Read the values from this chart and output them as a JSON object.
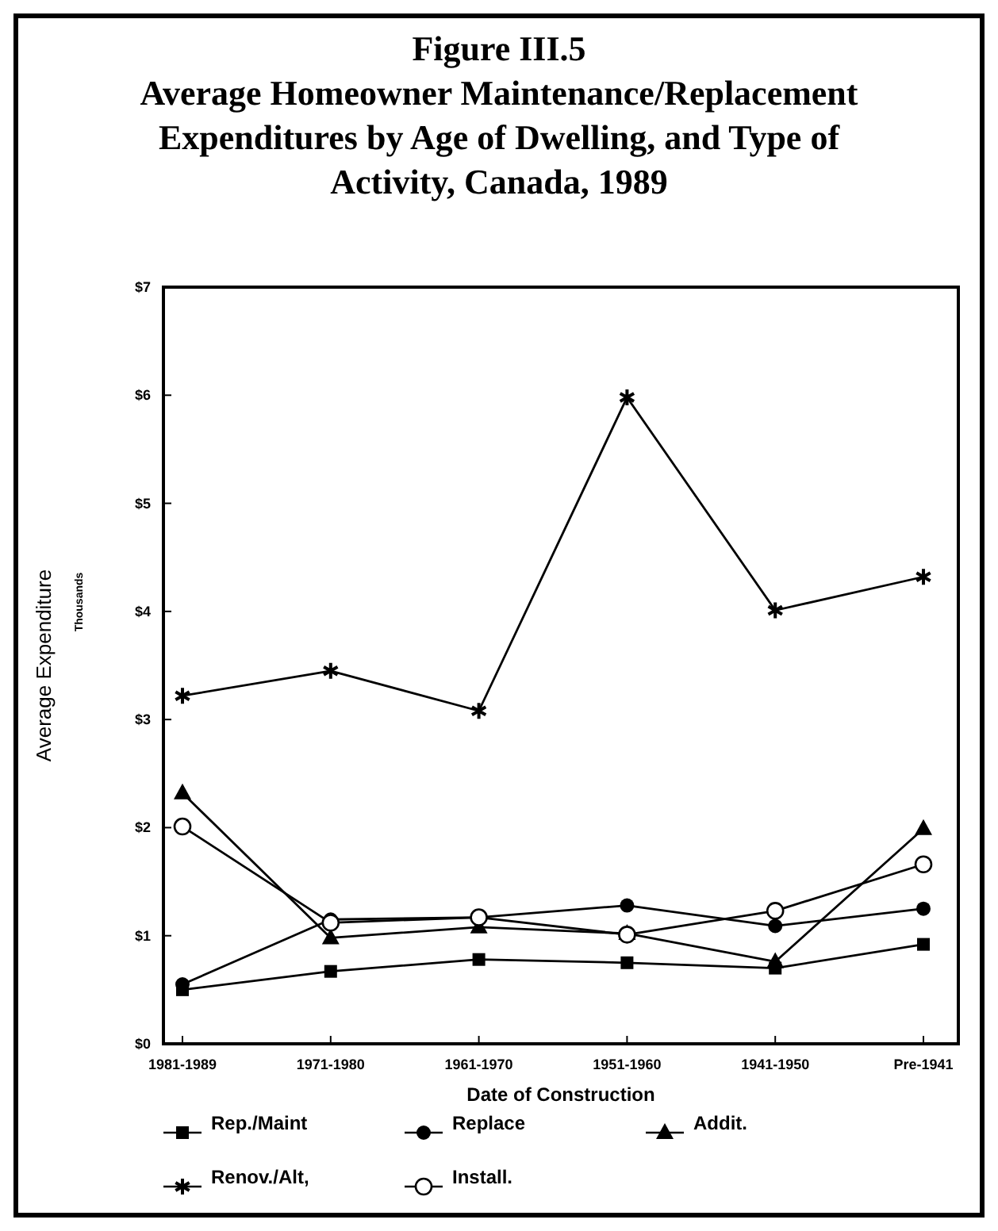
{
  "chart_data": {
    "type": "line",
    "title": "Figure III.5",
    "subtitle": "Average Homeowner Maintenance/Replacement Expenditures by Age of Dwelling, and Type of Activity, Canada, 1989",
    "xlabel": "Date of Construction",
    "ylabel": "Average Expenditure",
    "annotations": [
      "Thousands"
    ],
    "categories": [
      "1981-1989",
      "1971-1980",
      "1961-1970",
      "1951-1960",
      "1941-1950",
      "Pre-1941"
    ],
    "ylim": [
      0,
      7
    ],
    "yticks": [
      {
        "value": 0,
        "label": "$0"
      },
      {
        "value": 1,
        "label": "$1"
      },
      {
        "value": 2,
        "label": "$2"
      },
      {
        "value": 3,
        "label": "$3"
      },
      {
        "value": 4,
        "label": "$4"
      },
      {
        "value": 5,
        "label": "$5"
      },
      {
        "value": 6,
        "label": "$6"
      },
      {
        "value": 7,
        "label": "$7"
      }
    ],
    "grid": false,
    "legend": "bottom",
    "series": [
      {
        "name": "Rep./Maint",
        "color": "#000000",
        "marker": "square",
        "values": [
          0.5,
          0.67,
          0.78,
          0.75,
          0.7,
          0.92
        ]
      },
      {
        "name": "Replace",
        "color": "#000000",
        "marker": "circle",
        "values": [
          0.55,
          1.15,
          1.17,
          1.28,
          1.09,
          1.25
        ]
      },
      {
        "name": "Addit.",
        "color": "#000000",
        "marker": "triangle",
        "values": [
          2.32,
          0.98,
          1.08,
          1.02,
          0.76,
          1.99
        ]
      },
      {
        "name": "Renov./Alt,",
        "color": "#000000",
        "marker": "cross",
        "values": [
          3.22,
          3.45,
          3.08,
          5.98,
          4.01,
          4.32
        ]
      },
      {
        "name": "Install.",
        "color": "#000000",
        "marker": "circle",
        "values": [
          2.01,
          1.12,
          1.17,
          1.01,
          1.23,
          1.66
        ]
      }
    ]
  }
}
